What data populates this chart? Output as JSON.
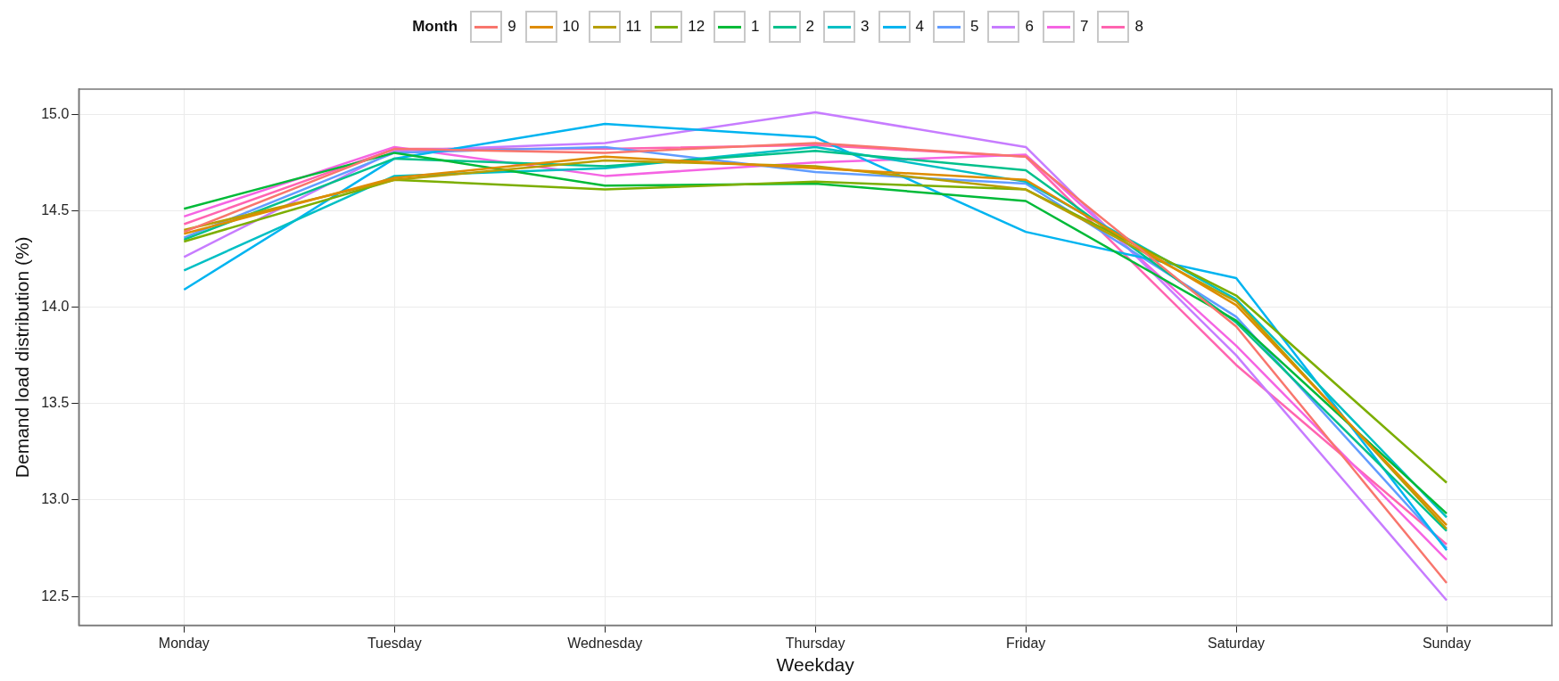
{
  "chart_data": {
    "type": "line",
    "xlabel": "Weekday",
    "ylabel": "Demand load distribution (%)",
    "legend_title": "Month",
    "categories": [
      "Monday",
      "Tuesday",
      "Wednesday",
      "Thursday",
      "Friday",
      "Saturday",
      "Sunday"
    ],
    "ylim": [
      12.35,
      15.13
    ],
    "yticks": [
      {
        "value": 12.5,
        "label": "12.5"
      },
      {
        "value": 13,
        "label": "13.0"
      },
      {
        "value": 13.5,
        "label": "13.5"
      },
      {
        "value": 14,
        "label": "14.0"
      },
      {
        "value": 14.5,
        "label": "14.5"
      },
      {
        "value": 15,
        "label": "15.0"
      }
    ],
    "grid": true,
    "legend": "top",
    "line_style": "solid",
    "marker": "none",
    "series": [
      {
        "name": "9",
        "color": "#f8766d",
        "values": [
          14.39,
          14.82,
          14.8,
          14.85,
          14.78,
          13.9,
          12.57
        ]
      },
      {
        "name": "10",
        "color": "#de8c00",
        "values": [
          14.38,
          14.67,
          14.78,
          14.72,
          14.66,
          14.01,
          12.87
        ]
      },
      {
        "name": "11",
        "color": "#b79f00",
        "values": [
          14.4,
          14.66,
          14.76,
          14.73,
          14.61,
          14.03,
          12.85
        ]
      },
      {
        "name": "12",
        "color": "#7cae00",
        "values": [
          14.34,
          14.66,
          14.61,
          14.65,
          14.61,
          14.06,
          13.09
        ]
      },
      {
        "name": "1",
        "color": "#00ba38",
        "values": [
          14.51,
          14.8,
          14.63,
          14.64,
          14.55,
          13.93,
          12.93
        ]
      },
      {
        "name": "2",
        "color": "#00c08b",
        "values": [
          14.35,
          14.77,
          14.73,
          14.81,
          14.71,
          13.92,
          12.84
        ]
      },
      {
        "name": "3",
        "color": "#00bfc4",
        "values": [
          14.19,
          14.68,
          14.72,
          14.83,
          14.65,
          14.04,
          12.91
        ]
      },
      {
        "name": "4",
        "color": "#00b4f0",
        "values": [
          14.09,
          14.77,
          14.95,
          14.88,
          14.39,
          14.15,
          12.74
        ]
      },
      {
        "name": "5",
        "color": "#619cff",
        "values": [
          14.36,
          14.8,
          14.83,
          14.7,
          14.64,
          13.95,
          12.75
        ]
      },
      {
        "name": "6",
        "color": "#c77cff",
        "values": [
          14.26,
          14.81,
          14.85,
          15.01,
          14.83,
          13.75,
          12.48
        ]
      },
      {
        "name": "7",
        "color": "#f564e3",
        "values": [
          14.47,
          14.83,
          14.68,
          14.75,
          14.79,
          13.8,
          12.69
        ]
      },
      {
        "name": "8",
        "color": "#ff64b0",
        "values": [
          14.43,
          14.82,
          14.82,
          14.84,
          14.78,
          13.7,
          12.77
        ]
      }
    ]
  }
}
